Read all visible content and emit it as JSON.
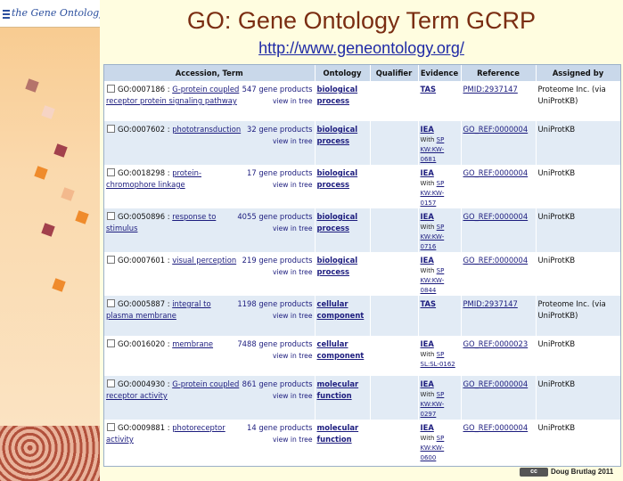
{
  "logo": {
    "text": "the Gene Ontology"
  },
  "title": "GO: Gene Ontology Term GCRP",
  "url": "http://www.geneontology.org/",
  "table": {
    "headers": [
      "Accession, Term",
      "Ontology",
      "Qualifier",
      "Evidence",
      "Reference",
      "Assigned by"
    ],
    "rows": [
      {
        "acc": "GO:0007186",
        "term": "G-protein coupled receptor protein signaling pathway",
        "products": "547 gene products",
        "tree": "view in tree",
        "ontology": "biological process",
        "qualifier": "",
        "evidence": "TAS",
        "with_label": "",
        "with_value": "",
        "reference": "PMID:2937147",
        "assigned": "Proteome Inc. (via UniProtKB)"
      },
      {
        "acc": "GO:0007602",
        "term": "phototransduction",
        "products": "32 gene products",
        "tree": "view in tree",
        "ontology": "biological process",
        "qualifier": "",
        "evidence": "IEA",
        "with_label": "With",
        "with_value": "SP KW:KW-0681",
        "reference": "GO_REF:0000004",
        "assigned": "UniProtKB"
      },
      {
        "acc": "GO:0018298",
        "term": "protein-chromophore linkage",
        "products": "17 gene products",
        "tree": "view in tree",
        "ontology": "biological process",
        "qualifier": "",
        "evidence": "IEA",
        "with_label": "With",
        "with_value": "SP KW:KW-0157",
        "reference": "GO_REF:0000004",
        "assigned": "UniProtKB"
      },
      {
        "acc": "GO:0050896",
        "term": "response to stimulus",
        "products": "4055 gene products",
        "tree": "view in tree",
        "ontology": "biological process",
        "qualifier": "",
        "evidence": "IEA",
        "with_label": "With",
        "with_value": "SP KW:KW-0716",
        "reference": "GO_REF:0000004",
        "assigned": "UniProtKB"
      },
      {
        "acc": "GO:0007601",
        "term": "visual perception",
        "products": "219 gene products",
        "tree": "view in tree",
        "ontology": "biological process",
        "qualifier": "",
        "evidence": "IEA",
        "with_label": "With",
        "with_value": "SP KW:KW-0844",
        "reference": "GO_REF:0000004",
        "assigned": "UniProtKB"
      },
      {
        "acc": "GO:0005887",
        "term": "integral to plasma membrane",
        "products": "1198 gene products",
        "tree": "view in tree",
        "ontology": "cellular component",
        "qualifier": "",
        "evidence": "TAS",
        "with_label": "",
        "with_value": "",
        "reference": "PMID:2937147",
        "assigned": "Proteome Inc. (via UniProtKB)"
      },
      {
        "acc": "GO:0016020",
        "term": "membrane",
        "products": "7488 gene products",
        "tree": "view in tree",
        "ontology": "cellular component",
        "qualifier": "",
        "evidence": "IEA",
        "with_label": "With",
        "with_value": "SP SL:SL-0162",
        "reference": "GO_REF:0000023",
        "assigned": "UniProtKB"
      },
      {
        "acc": "GO:0004930",
        "term": "G-protein coupled receptor activity",
        "products": "861 gene products",
        "tree": "view in tree",
        "ontology": "molecular function",
        "qualifier": "",
        "evidence": "IEA",
        "with_label": "With",
        "with_value": "SP KW:KW-0297",
        "reference": "GO_REF:0000004",
        "assigned": "UniProtKB"
      },
      {
        "acc": "GO:0009881",
        "term": "photoreceptor activity",
        "products": "14 gene products",
        "tree": "view in tree",
        "ontology": "molecular function",
        "qualifier": "",
        "evidence": "IEA",
        "with_label": "With",
        "with_value": "SP KW:KW-0600",
        "reference": "GO_REF:0000004",
        "assigned": "UniProtKB"
      }
    ]
  },
  "credit": {
    "badge": "cc",
    "text": "Doug Brutlag 2011"
  },
  "colors": {
    "title": "#7a2d12",
    "link": "#1c1c7e",
    "header_bg": "#c9d8ea",
    "alt_row": "#e2ebf5"
  }
}
